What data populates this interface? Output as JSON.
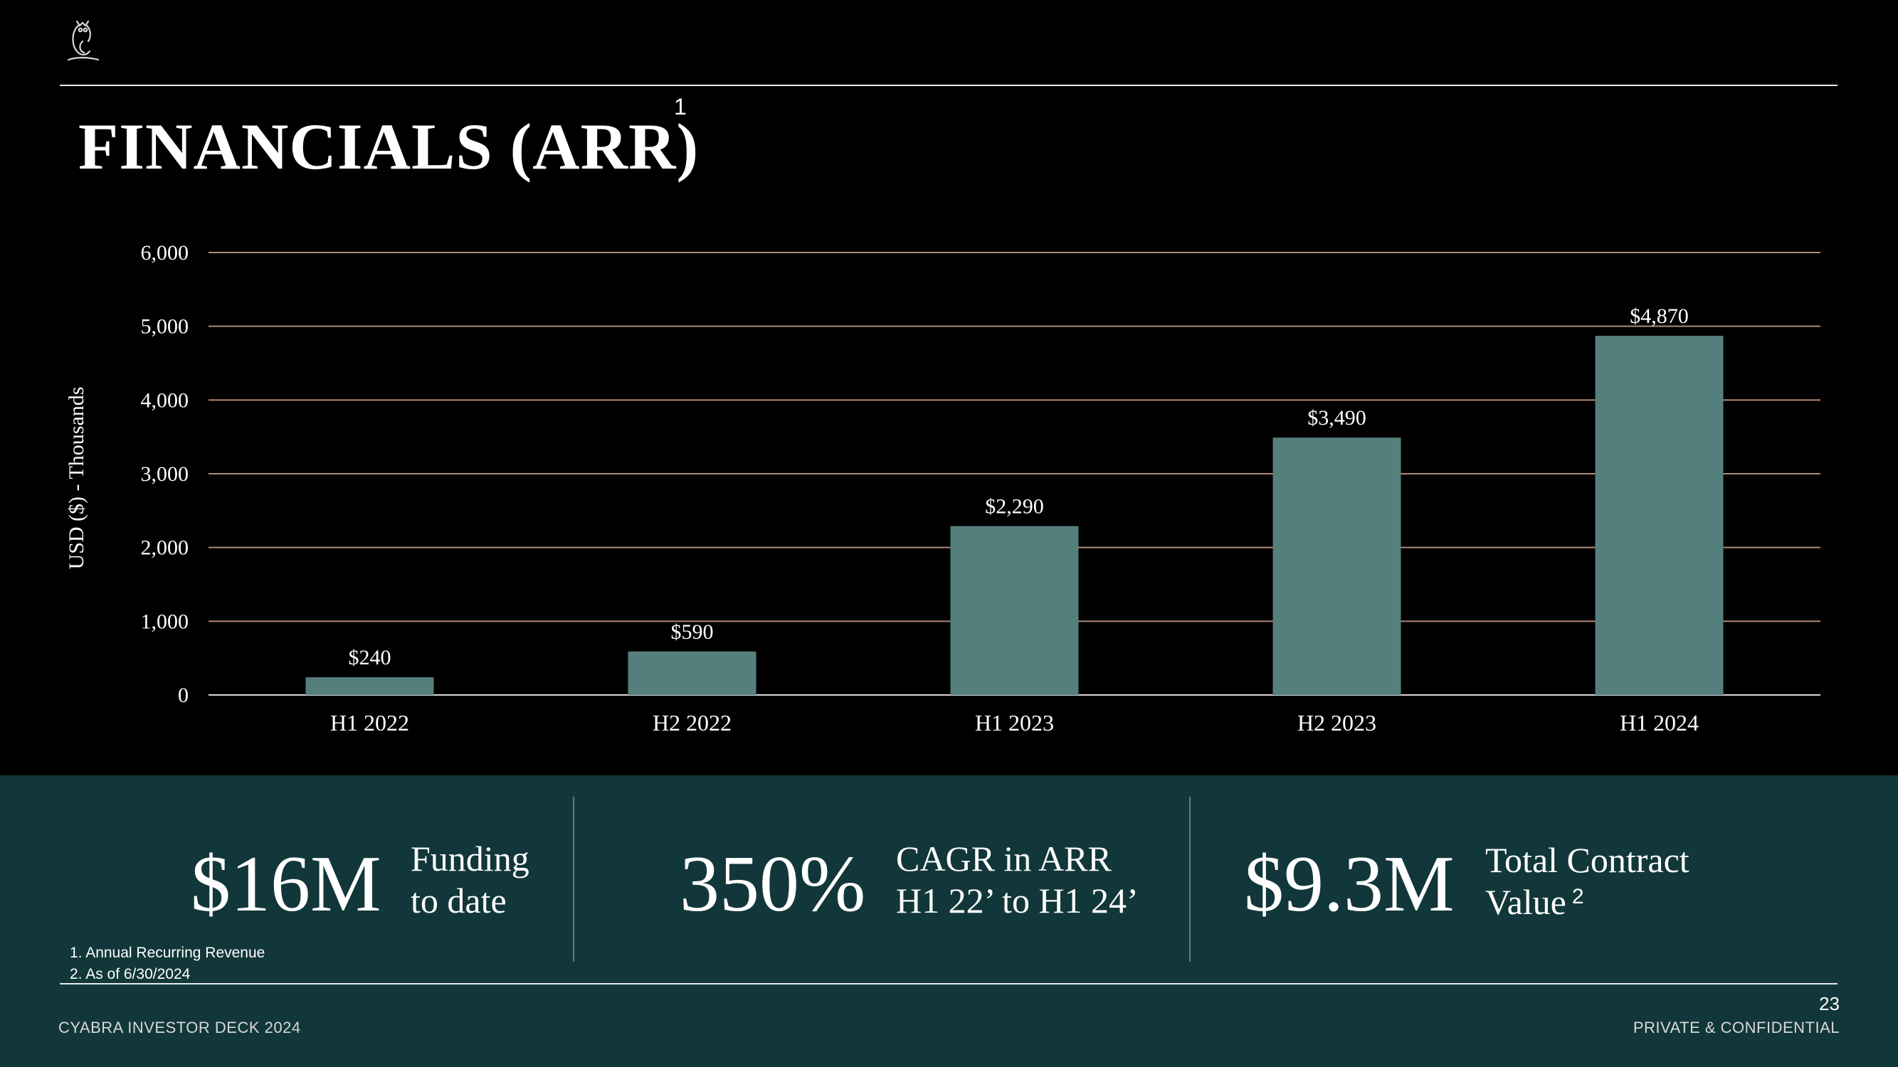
{
  "header": {
    "logo_icon": "owl-logo-icon"
  },
  "title": {
    "text": "FINANCIALS (ARR)",
    "superscript": "1"
  },
  "colors": {
    "bar": "#557f7d",
    "grid": "#b08a73",
    "panel": "#12373a",
    "background": "#000000"
  },
  "chart_data": {
    "type": "bar",
    "categories": [
      "H1 2022",
      "H2 2022",
      "H1 2023",
      "H2 2023",
      "H1 2024"
    ],
    "values": [
      240,
      590,
      2290,
      3490,
      4870
    ],
    "data_labels": [
      "$240",
      "$590",
      "$2,290",
      "$3,490",
      "$4,870"
    ],
    "ylabel": "USD ($) - Thousands",
    "ylim": [
      0,
      6000
    ],
    "yticks": [
      0,
      1000,
      2000,
      3000,
      4000,
      5000,
      6000
    ],
    "ytick_labels": [
      "0",
      "1,000",
      "2,000",
      "3,000",
      "4,000",
      "5,000",
      "6,000"
    ],
    "grid": true
  },
  "stats": [
    {
      "value": "$16M",
      "desc_lines": [
        "Funding",
        "to date"
      ],
      "sup": ""
    },
    {
      "value": "350%",
      "desc_lines": [
        "CAGR in ARR",
        "H1 22’ to H1 24’"
      ],
      "sup": ""
    },
    {
      "value": "$9.3M",
      "desc_lines": [
        "Total Contract",
        "Value"
      ],
      "sup": "2"
    }
  ],
  "footnotes": [
    "1. Annual Recurring Revenue",
    "2. As of 6/30/2024"
  ],
  "footer": {
    "left": "CYABRA INVESTOR DECK 2024",
    "right": "PRIVATE & CONFIDENTIAL",
    "page": "23"
  }
}
